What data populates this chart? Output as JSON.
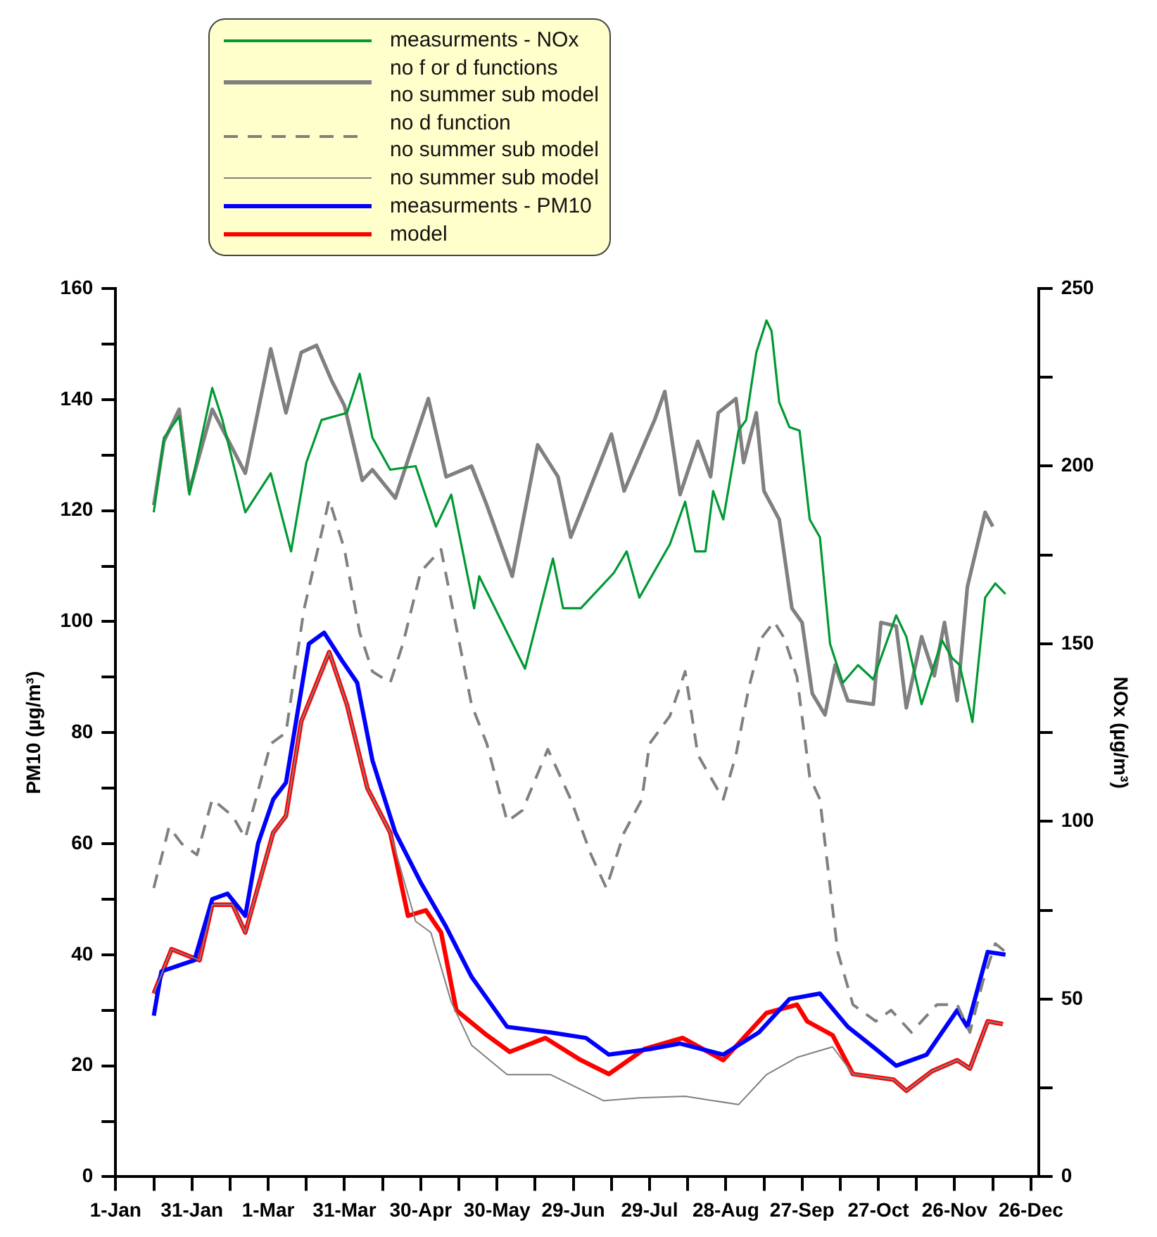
{
  "chart_data": {
    "type": "line",
    "ylabel": "PM10 (µg/m³)",
    "y2label": "NOx (µg/m³)",
    "grid": false,
    "legend": "top",
    "xlim": [
      "--01-01",
      "--12-29"
    ],
    "xticks": [
      {
        "value": "--01-01",
        "label": "1-Jan"
      },
      {
        "value": "--01-16",
        "label": null
      },
      {
        "value": "--01-31",
        "label": "31-Jan"
      },
      {
        "value": "--02-15",
        "label": null
      },
      {
        "value": "--03-01",
        "label": "1-Mar"
      },
      {
        "value": "--03-16",
        "label": null
      },
      {
        "value": "--03-31",
        "label": "31-Mar"
      },
      {
        "value": "--04-15",
        "label": null
      },
      {
        "value": "--04-30",
        "label": "30-Apr"
      },
      {
        "value": "--05-15",
        "label": null
      },
      {
        "value": "--05-30",
        "label": "30-May"
      },
      {
        "value": "--06-14",
        "label": null
      },
      {
        "value": "--06-29",
        "label": "29-Jun"
      },
      {
        "value": "--07-14",
        "label": null
      },
      {
        "value": "--07-29",
        "label": "29-Jul"
      },
      {
        "value": "--08-13",
        "label": null
      },
      {
        "value": "--08-28",
        "label": "28-Aug"
      },
      {
        "value": "--09-12",
        "label": null
      },
      {
        "value": "--09-27",
        "label": "27-Sep"
      },
      {
        "value": "--10-12",
        "label": null
      },
      {
        "value": "--10-27",
        "label": "27-Oct"
      },
      {
        "value": "--11-11",
        "label": null
      },
      {
        "value": "--11-26",
        "label": "26-Nov"
      },
      {
        "value": "--12-11",
        "label": null
      },
      {
        "value": "--12-26",
        "label": "26-Dec"
      }
    ],
    "ylim": [
      0,
      160
    ],
    "yticks": [
      0,
      {
        "value": 10,
        "label": null
      },
      20,
      {
        "value": 30,
        "label": null
      },
      40,
      {
        "value": 50,
        "label": null
      },
      60,
      {
        "value": 70,
        "label": null
      },
      80,
      {
        "value": 90,
        "label": null
      },
      100,
      {
        "value": 110,
        "label": null
      },
      120,
      {
        "value": 130,
        "label": null
      },
      140,
      {
        "value": 150,
        "label": null
      },
      160
    ],
    "y2lim": [
      0,
      250
    ],
    "y2ticks": [
      0,
      {
        "value": 25,
        "label": null
      },
      50,
      {
        "value": 75,
        "label": null
      },
      100,
      {
        "value": 125,
        "label": null
      },
      150,
      {
        "value": 175,
        "label": null
      },
      200,
      {
        "value": 225,
        "label": null
      },
      250
    ],
    "series": [
      {
        "name": "measurments - NOx",
        "color": "#009933",
        "axis": "y2",
        "x": [
          "--01-16",
          "--01-20",
          "--01-26",
          "--01-30",
          "--02-08",
          "--02-12",
          "--02-21",
          "--03-02",
          "--03-10",
          "--03-16",
          "--03-22",
          "--04-01",
          "--04-06",
          "--04-11",
          "--04-18",
          "--04-28",
          "--05-06",
          "--05-12",
          "--05-21",
          "--05-23",
          "--06-10",
          "--06-21",
          "--06-25",
          "--07-02",
          "--07-15",
          "--07-20",
          "--07-25",
          "--08-06",
          "--08-12",
          "--08-16",
          "--08-20",
          "--08-23",
          "--08-27",
          "--09-02",
          "--09-05",
          "--09-09",
          "--09-13",
          "--09-15",
          "--09-18",
          "--09-22",
          "--09-26",
          "--09-30",
          "--10-04",
          "--10-08",
          "--10-13",
          "--10-19",
          "--10-25",
          "--11-03",
          "--11-07",
          "--11-13",
          "--11-21",
          "--11-25",
          "--11-28",
          "--12-03",
          "--12-08",
          "--12-12",
          "--12-16"
        ],
        "values": [
          187,
          208,
          214,
          192,
          222,
          213,
          187,
          198,
          176,
          201,
          213,
          215,
          226,
          208,
          199,
          200,
          183,
          192,
          160,
          169,
          143,
          174,
          160,
          160,
          170,
          176,
          163,
          178,
          190,
          176,
          176,
          193,
          185,
          210,
          213,
          232,
          241,
          238,
          218,
          211,
          210,
          185,
          180,
          150,
          139,
          144,
          140,
          158,
          152,
          133,
          151,
          146,
          144,
          128,
          163,
          167,
          164
        ]
      },
      {
        "name": "no f or d  functions\nno summer sub model",
        "color": "#808080",
        "axis": "y2",
        "x": [
          "--01-16",
          "--01-20",
          "--01-26",
          "--01-30",
          "--02-08",
          "--02-21",
          "--03-02",
          "--03-08",
          "--03-14",
          "--03-20",
          "--03-26",
          "--03-31",
          "--04-07",
          "--04-11",
          "--04-20",
          "--05-03",
          "--05-10",
          "--05-20",
          "--05-26",
          "--06-05",
          "--06-15",
          "--06-23",
          "--06-28",
          "--07-03",
          "--07-14",
          "--07-19",
          "--07-31",
          "--08-04",
          "--08-10",
          "--08-17",
          "--08-22",
          "--08-25",
          "--09-01",
          "--09-04",
          "--09-09",
          "--09-12",
          "--09-18",
          "--09-23",
          "--09-27",
          "--10-01",
          "--10-06",
          "--10-10",
          "--10-15",
          "--10-25",
          "--10-28",
          "--11-03",
          "--11-07",
          "--11-13",
          "--11-18",
          "--11-22",
          "--11-27",
          "--12-01",
          "--12-08",
          "--12-11"
        ],
        "values": [
          189,
          207,
          216,
          193,
          216,
          198,
          233,
          215,
          232,
          234,
          224,
          217,
          196,
          199,
          191,
          219,
          197,
          200,
          189,
          169,
          206,
          197,
          180,
          189,
          209,
          193,
          213,
          221,
          192,
          207,
          197,
          215,
          219,
          201,
          215,
          193,
          185,
          160,
          156,
          136,
          130,
          144,
          134,
          133,
          156,
          155,
          132,
          152,
          141,
          156,
          134,
          166,
          187,
          183
        ]
      },
      {
        "name": "no d  function\nno summer sub model",
        "color": "#808080",
        "line_style": "dashed",
        "x": [
          "--01-16",
          "--01-22",
          "--01-27",
          "--02-02",
          "--02-08",
          "--02-16",
          "--02-21",
          "--03-02",
          "--03-08",
          "--03-15",
          "--03-25",
          "--03-31",
          "--04-06",
          "--04-11",
          "--04-18",
          "--04-23",
          "--04-30",
          "--05-08",
          "--05-14",
          "--05-20",
          "--05-26",
          "--06-03",
          "--06-09",
          "--06-19",
          "--06-25",
          "--06-28",
          "--07-06",
          "--07-12",
          "--07-19",
          "--07-26",
          "--07-29",
          "--08-06",
          "--08-12",
          "--08-17",
          "--08-27",
          "--09-01",
          "--09-06",
          "--09-11",
          "--09-16",
          "--09-20",
          "--09-25",
          "--09-30",
          "--10-04",
          "--10-11",
          "--10-17",
          "--10-26",
          "--11-01",
          "--11-09",
          "--11-19",
          "--11-27",
          "--12-02",
          "--12-07",
          "--12-12",
          "--12-16"
        ],
        "values": [
          52,
          63,
          60,
          58,
          68,
          65,
          61,
          78,
          80,
          102,
          122,
          113,
          98,
          91,
          89,
          96,
          109,
          113,
          99,
          85,
          78,
          64,
          66,
          77,
          71,
          68,
          58,
          52,
          62,
          68,
          78,
          83,
          91,
          76,
          68,
          76,
          88,
          97,
          100,
          97,
          90,
          72,
          68,
          40.5,
          31,
          28,
          30,
          26,
          31,
          31,
          26,
          35,
          42,
          40.5
        ]
      },
      {
        "name": "no summer sub model",
        "color": "#808080",
        "x": [
          "--01-16",
          "--01-23",
          "--02-03",
          "--02-08",
          "--02-16",
          "--02-21",
          "--03-03",
          "--03-08",
          "--03-14",
          "--03-25",
          "--04-01",
          "--04-09",
          "--04-18",
          "--04-28",
          "--05-04",
          "--05-12",
          "--05-20",
          "--06-03",
          "--06-20",
          "--07-11",
          "--07-25",
          "--08-12",
          "--09-02",
          "--09-13",
          "--09-25",
          "--10-09",
          "--10-17",
          "--11-02",
          "--11-07",
          "--11-17",
          "--11-27",
          "--12-02",
          "--12-09",
          "--12-15"
        ],
        "values": [
          33,
          41,
          39,
          49,
          49,
          44,
          62,
          65,
          82,
          94.5,
          85,
          70,
          62,
          46,
          44,
          31.5,
          23.7,
          18.4,
          18.4,
          13.7,
          14.2,
          14.5,
          13,
          18.4,
          21.5,
          23.4,
          18.5,
          17.5,
          15.5,
          19,
          21,
          19.5,
          28,
          27.5
        ]
      },
      {
        "name": "measurments - PM10",
        "color": "#0000ff",
        "x": [
          "--01-16",
          "--01-19",
          "--02-01",
          "--02-08",
          "--02-14",
          "--02-21",
          "--02-26",
          "--03-03",
          "--03-08",
          "--03-17",
          "--03-23",
          "--03-30",
          "--04-05",
          "--04-11",
          "--04-20",
          "--04-30",
          "--05-10",
          "--05-20",
          "--06-03",
          "--06-20",
          "--07-04",
          "--07-13",
          "--07-29",
          "--08-10",
          "--08-27",
          "--09-10",
          "--09-22",
          "--10-04",
          "--10-15",
          "--10-26",
          "--11-03",
          "--11-15",
          "--11-27",
          "--12-01",
          "--12-09",
          "--12-16"
        ],
        "values": [
          29,
          37,
          39,
          50,
          51,
          47,
          60,
          68,
          71,
          96,
          98,
          93,
          89,
          75,
          62,
          53,
          45,
          36,
          27,
          26,
          25,
          22,
          23,
          24,
          22,
          26,
          32,
          33,
          27,
          23,
          20,
          22,
          30,
          27,
          40.5,
          40
        ]
      },
      {
        "name": "model",
        "color": "#ff0000",
        "x": [
          "--01-16",
          "--01-23",
          "--02-03",
          "--02-08",
          "--02-16",
          "--02-21",
          "--03-03",
          "--03-08",
          "--03-14",
          "--03-25",
          "--04-01",
          "--04-09",
          "--04-18",
          "--04-25",
          "--05-02",
          "--05-08",
          "--05-14",
          "--05-26",
          "--06-04",
          "--06-18",
          "--07-02",
          "--07-13",
          "--07-27",
          "--08-11",
          "--08-27",
          "--09-13",
          "--09-25",
          "--09-29",
          "--10-09",
          "--10-17",
          "--11-02",
          "--11-07",
          "--11-17",
          "--11-27",
          "--12-02",
          "--12-09",
          "--12-15"
        ],
        "values": [
          33,
          41,
          39,
          49,
          49,
          44,
          62,
          65,
          82,
          94.5,
          85,
          70,
          62,
          47,
          48,
          44,
          30,
          25.5,
          22.5,
          25,
          21,
          18.5,
          23,
          25,
          21,
          29.5,
          31,
          28,
          25.5,
          18.5,
          17.5,
          15.5,
          19,
          21,
          19.5,
          28,
          27.5
        ]
      }
    ]
  }
}
